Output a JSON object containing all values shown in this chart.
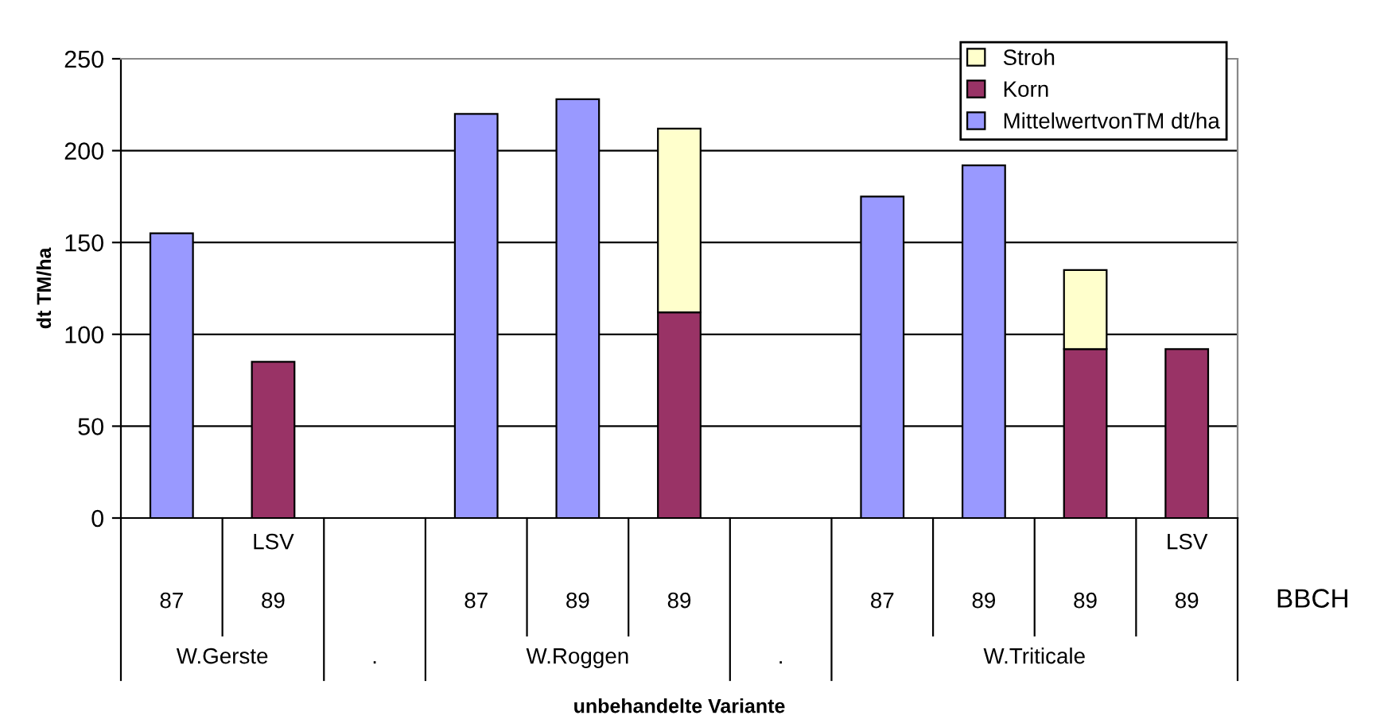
{
  "chart_data": {
    "type": "bar",
    "stacked": true,
    "categories": [
      "87",
      "LSV\n89",
      null,
      "87",
      "89",
      "89",
      null,
      "87",
      "89",
      "89",
      "LSV\n89"
    ],
    "series": [
      {
        "name": "MittelwertvonTM dt/ha",
        "color": "#9999ff",
        "values": [
          155,
          null,
          null,
          220,
          228,
          null,
          null,
          175,
          192,
          null,
          null
        ]
      },
      {
        "name": "Korn",
        "color": "#993366",
        "values": [
          null,
          85,
          null,
          null,
          null,
          112,
          null,
          null,
          null,
          92,
          92
        ]
      },
      {
        "name": "Stroh",
        "color": "#ffffcc",
        "values": [
          null,
          null,
          null,
          null,
          null,
          100,
          null,
          null,
          null,
          43,
          null
        ]
      }
    ],
    "xlabel": "unbehandelte Variante",
    "ylabel": "dt TM/ha",
    "ylim": [
      0,
      250
    ],
    "yticks": [
      0,
      50,
      100,
      150,
      200,
      250
    ],
    "grid": "y",
    "legend": "top right",
    "annotations": [
      "W.Gerste",
      ".",
      "W.Roggen",
      ".",
      "W.Triticale",
      "BBCH"
    ]
  }
}
